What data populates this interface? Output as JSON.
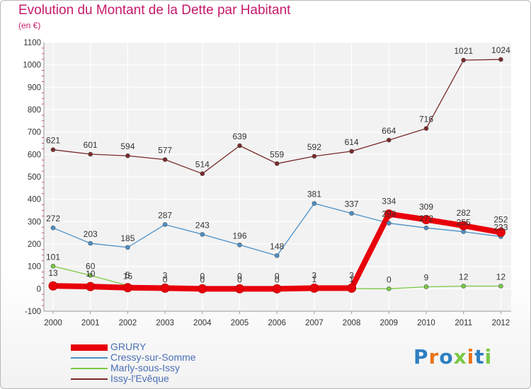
{
  "title": "Evolution du Montant de la Dette par Habitant",
  "unit": "(en €)",
  "logo_text": "Proxiti",
  "colors": {
    "title": "#c41a6a",
    "grid": "#ffffff",
    "axis": "#999999",
    "tick_dash": "#d04080"
  },
  "chart_data": {
    "type": "line",
    "title": "Evolution du Montant de la Dette par Habitant",
    "ylabel": "(en €)",
    "xlabel": "",
    "x": [
      "2000",
      "2001",
      "2002",
      "2003",
      "2004",
      "2005",
      "2006",
      "2007",
      "2008",
      "2009",
      "2010",
      "2011",
      "2012"
    ],
    "ylim": [
      -100,
      1100
    ],
    "yticks": [
      -100,
      0,
      100,
      200,
      300,
      400,
      500,
      600,
      700,
      800,
      900,
      1000,
      1100
    ],
    "grid": true,
    "legend_position": "bottom-left",
    "series": [
      {
        "name": "GRURY",
        "color": "#e8000b",
        "values": [
          13,
          10,
          5,
          3,
          0,
          0,
          0,
          3,
          3,
          334,
          309,
          282,
          252
        ],
        "labels": [
          "13",
          "10",
          "5",
          "3",
          "0",
          "0",
          "0",
          "3",
          "3",
          "334",
          "309",
          "282",
          "252"
        ]
      },
      {
        "name": "Cressy-sur-Somme",
        "color": "#4a90c8",
        "values": [
          272,
          203,
          185,
          287,
          243,
          196,
          148,
          381,
          337,
          293,
          272,
          255,
          233
        ],
        "labels": [
          "272",
          "203",
          "185",
          "287",
          "243",
          "196",
          "148",
          "381",
          "337",
          "293",
          "272",
          "255",
          "233"
        ]
      },
      {
        "name": "Marly-sous-Issy",
        "color": "#7ac943",
        "values": [
          101,
          60,
          15,
          0,
          0,
          0,
          0,
          1,
          1,
          0,
          9,
          12,
          12
        ],
        "labels": [
          "101",
          "60",
          "15",
          "0",
          "0",
          "0",
          "0",
          "1",
          "1",
          "0",
          "9",
          "12",
          "12"
        ]
      },
      {
        "name": "Issy-l'Evêque",
        "color": "#7a2a2a",
        "values": [
          621,
          601,
          594,
          577,
          514,
          639,
          559,
          592,
          614,
          664,
          716,
          1021,
          1024
        ],
        "labels": [
          "621",
          "601",
          "594",
          "577",
          "514",
          "639",
          "559",
          "592",
          "614",
          "664",
          "716",
          "1021",
          "1024"
        ]
      }
    ]
  }
}
